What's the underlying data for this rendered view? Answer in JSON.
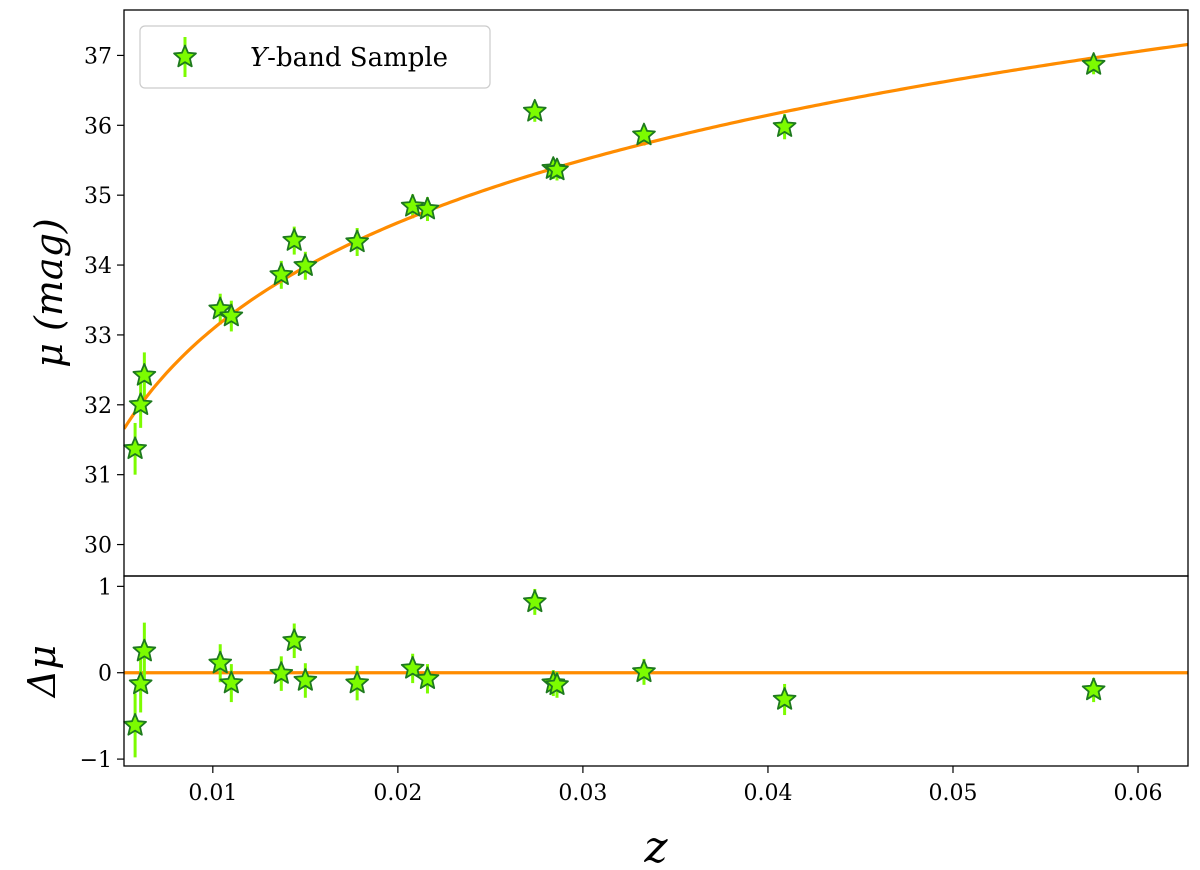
{
  "chart_data": {
    "type": "scatter",
    "xlabel": "z",
    "x_ticks": [
      0.01,
      0.02,
      0.03,
      0.04,
      0.05,
      0.06
    ],
    "x_tick_labels": [
      "0.01",
      "0.02",
      "0.03",
      "0.04",
      "0.05",
      "0.06"
    ],
    "xlim": [
      0.0052,
      0.0627
    ],
    "legend": {
      "placement": "top-left",
      "label_italic": "Y",
      "label_rest": "-band Sample"
    },
    "colors": {
      "marker_fill": "#7CFC00",
      "marker_edge": "#1e7a1e",
      "errorbar": "#7CFC00",
      "fit_line": "#ff8c00"
    },
    "top_panel": {
      "ylabel": "μ (mag)",
      "y_ticks": [
        30,
        31,
        32,
        33,
        34,
        35,
        36,
        37
      ],
      "y_tick_labels": [
        "30",
        "31",
        "32",
        "33",
        "34",
        "35",
        "36",
        "37"
      ],
      "ylim": [
        29.55,
        37.65
      ],
      "fit_curve": {
        "type": "distance_modulus",
        "H0": 73,
        "q0": -0.55
      },
      "series": [
        {
          "name": "Y-band Sample",
          "points": [
            {
              "x": 0.0058,
              "y": 31.37,
              "err": 0.37
            },
            {
              "x": 0.0061,
              "y": 32.0,
              "err": 0.33
            },
            {
              "x": 0.0063,
              "y": 32.42,
              "err": 0.33
            },
            {
              "x": 0.0104,
              "y": 33.37,
              "err": 0.22
            },
            {
              "x": 0.011,
              "y": 33.27,
              "err": 0.22
            },
            {
              "x": 0.0137,
              "y": 33.86,
              "err": 0.2
            },
            {
              "x": 0.0144,
              "y": 34.35,
              "err": 0.2
            },
            {
              "x": 0.015,
              "y": 33.99,
              "err": 0.2
            },
            {
              "x": 0.0178,
              "y": 34.33,
              "err": 0.2
            },
            {
              "x": 0.0208,
              "y": 34.84,
              "err": 0.17
            },
            {
              "x": 0.0216,
              "y": 34.8,
              "err": 0.17
            },
            {
              "x": 0.0274,
              "y": 36.2,
              "err": 0.15
            },
            {
              "x": 0.0284,
              "y": 35.38,
              "err": 0.15
            },
            {
              "x": 0.0286,
              "y": 35.36,
              "err": 0.15
            },
            {
              "x": 0.0333,
              "y": 35.86,
              "err": 0.15
            },
            {
              "x": 0.0409,
              "y": 35.98,
              "err": 0.18
            },
            {
              "x": 0.0576,
              "y": 36.87,
              "err": 0.14
            }
          ]
        }
      ]
    },
    "bottom_panel": {
      "ylabel": "Δμ",
      "y_ticks": [
        -1,
        0,
        1
      ],
      "y_tick_labels": [
        "−1",
        "0",
        "1"
      ],
      "ylim": [
        -1.08,
        1.12
      ],
      "reference_line": 0,
      "series": [
        {
          "points": [
            {
              "x": 0.0058,
              "y": -0.61,
              "err": 0.37
            },
            {
              "x": 0.0061,
              "y": -0.13,
              "err": 0.33
            },
            {
              "x": 0.0063,
              "y": 0.25,
              "err": 0.33
            },
            {
              "x": 0.0104,
              "y": 0.11,
              "err": 0.22
            },
            {
              "x": 0.011,
              "y": -0.12,
              "err": 0.22
            },
            {
              "x": 0.0137,
              "y": -0.01,
              "err": 0.2
            },
            {
              "x": 0.0144,
              "y": 0.37,
              "err": 0.2
            },
            {
              "x": 0.015,
              "y": -0.09,
              "err": 0.2
            },
            {
              "x": 0.0178,
              "y": -0.12,
              "err": 0.2
            },
            {
              "x": 0.0208,
              "y": 0.05,
              "err": 0.17
            },
            {
              "x": 0.0216,
              "y": -0.07,
              "err": 0.17
            },
            {
              "x": 0.0274,
              "y": 0.82,
              "err": 0.15
            },
            {
              "x": 0.0284,
              "y": -0.12,
              "err": 0.15
            },
            {
              "x": 0.0286,
              "y": -0.14,
              "err": 0.15
            },
            {
              "x": 0.0333,
              "y": 0.01,
              "err": 0.15
            },
            {
              "x": 0.0409,
              "y": -0.31,
              "err": 0.18
            },
            {
              "x": 0.0576,
              "y": -0.2,
              "err": 0.14
            }
          ]
        }
      ]
    }
  }
}
